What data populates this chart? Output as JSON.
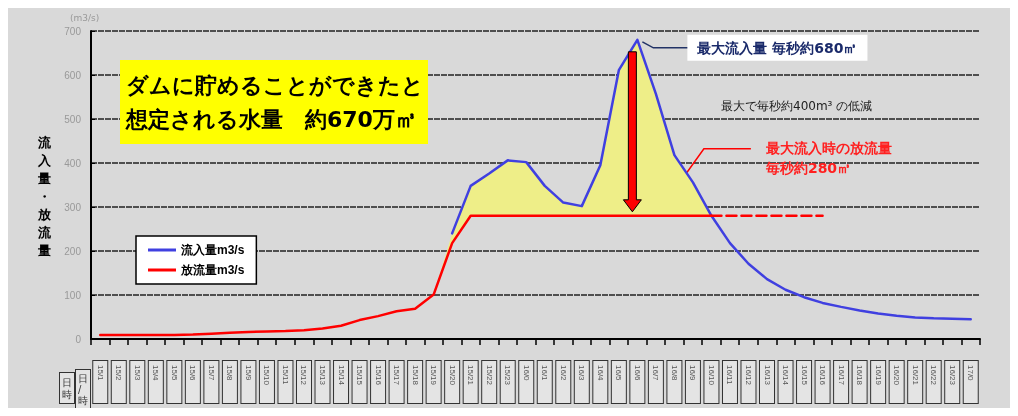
{
  "chart_data": {
    "type": "line",
    "categories": [
      "15/1",
      "15/2",
      "15/3",
      "15/4",
      "15/5",
      "15/6",
      "15/7",
      "15/8",
      "15/9",
      "15/10",
      "15/11",
      "15/12",
      "15/13",
      "15/14",
      "15/15",
      "15/16",
      "15/17",
      "15/18",
      "15/19",
      "15/20",
      "15/21",
      "15/22",
      "15/23",
      "16/0",
      "16/1",
      "16/2",
      "16/3",
      "16/4",
      "16/5",
      "16/6",
      "16/7",
      "16/8",
      "16/9",
      "16/10",
      "16/11",
      "16/12",
      "16/13",
      "16/14",
      "16/15",
      "16/16",
      "16/17",
      "16/18",
      "16/19",
      "16/20",
      "16/21",
      "16/22",
      "16/23",
      "17/0"
    ],
    "series": [
      {
        "name": "流入量m3/s",
        "color": "#4040e0",
        "values": [
          null,
          null,
          null,
          null,
          null,
          null,
          null,
          null,
          null,
          null,
          null,
          null,
          null,
          null,
          null,
          null,
          null,
          null,
          null,
          240,
          348,
          376,
          406,
          402,
          348,
          310,
          302,
          395,
          611,
          680,
          557,
          418,
          356,
          280,
          218,
          171,
          136,
          112,
          95,
          82,
          73,
          65,
          58,
          53,
          49,
          47,
          46,
          45
        ],
        "lower": [
          null,
          null,
          null,
          null,
          null,
          null,
          null,
          null,
          null,
          null,
          null,
          null,
          null,
          null,
          null,
          null,
          null,
          null,
          101,
          218,
          280,
          280,
          280,
          280,
          280,
          280,
          280,
          280,
          280,
          280,
          280,
          280,
          280,
          280,
          null,
          null,
          null,
          null,
          null,
          null,
          null,
          null,
          null,
          null,
          null,
          null,
          null,
          null
        ],
        "upper": [
          null,
          null,
          null,
          null,
          null,
          null,
          null,
          null,
          null,
          null,
          null,
          null,
          null,
          null,
          null,
          null,
          null,
          null,
          101,
          240,
          348,
          376,
          406,
          402,
          348,
          310,
          302,
          395,
          611,
          680,
          557,
          418,
          356,
          280,
          null,
          null,
          null,
          null,
          null,
          null,
          null,
          null,
          null,
          null,
          null,
          null,
          null,
          null
        ]
      },
      {
        "name": "放流量m3/s",
        "color": "#ff0000",
        "values": [
          9,
          9,
          9,
          9,
          9,
          10,
          12,
          14,
          16,
          17,
          18,
          20,
          24,
          30,
          43,
          52,
          63,
          69,
          101,
          218,
          280,
          280,
          280,
          280,
          280,
          280,
          280,
          280,
          280,
          280,
          280,
          280,
          280,
          280,
          null,
          null,
          null,
          null,
          null,
          null,
          null,
          null,
          null,
          null,
          null,
          null,
          null,
          null
        ]
      },
      {
        "color": "#ff0000",
        "line_style": "dashed",
        "values": [
          null,
          null,
          null,
          null,
          null,
          null,
          null,
          null,
          null,
          null,
          null,
          null,
          null,
          null,
          null,
          null,
          null,
          null,
          null,
          null,
          null,
          null,
          null,
          null,
          null,
          null,
          null,
          null,
          null,
          null,
          null,
          null,
          null,
          280,
          280,
          280,
          280,
          280,
          280,
          280,
          null,
          null,
          null,
          null,
          null,
          null,
          null,
          null
        ]
      }
    ],
    "xlabel": "日/時",
    "ylabel": "流入量・放流量",
    "ylim": [
      0,
      700
    ],
    "yticks": [
      0,
      100,
      200,
      300,
      400,
      500,
      600,
      700
    ],
    "grid": "y",
    "legend": "left",
    "marker": "none",
    "line_style": "solid",
    "annotations": [
      "(m3/s)",
      "ダムに貯めることができたと想定される水量　約670万㎥",
      {
        "text": "最大流入量 毎秒約680㎥",
        "x": "16/6",
        "y": 680
      },
      "最大で毎秒約400m³ の低減",
      {
        "text": "最大流入時の放流量毎秒約280㎥",
        "x": "16/7",
        "y": 280
      },
      "日時"
    ]
  }
}
